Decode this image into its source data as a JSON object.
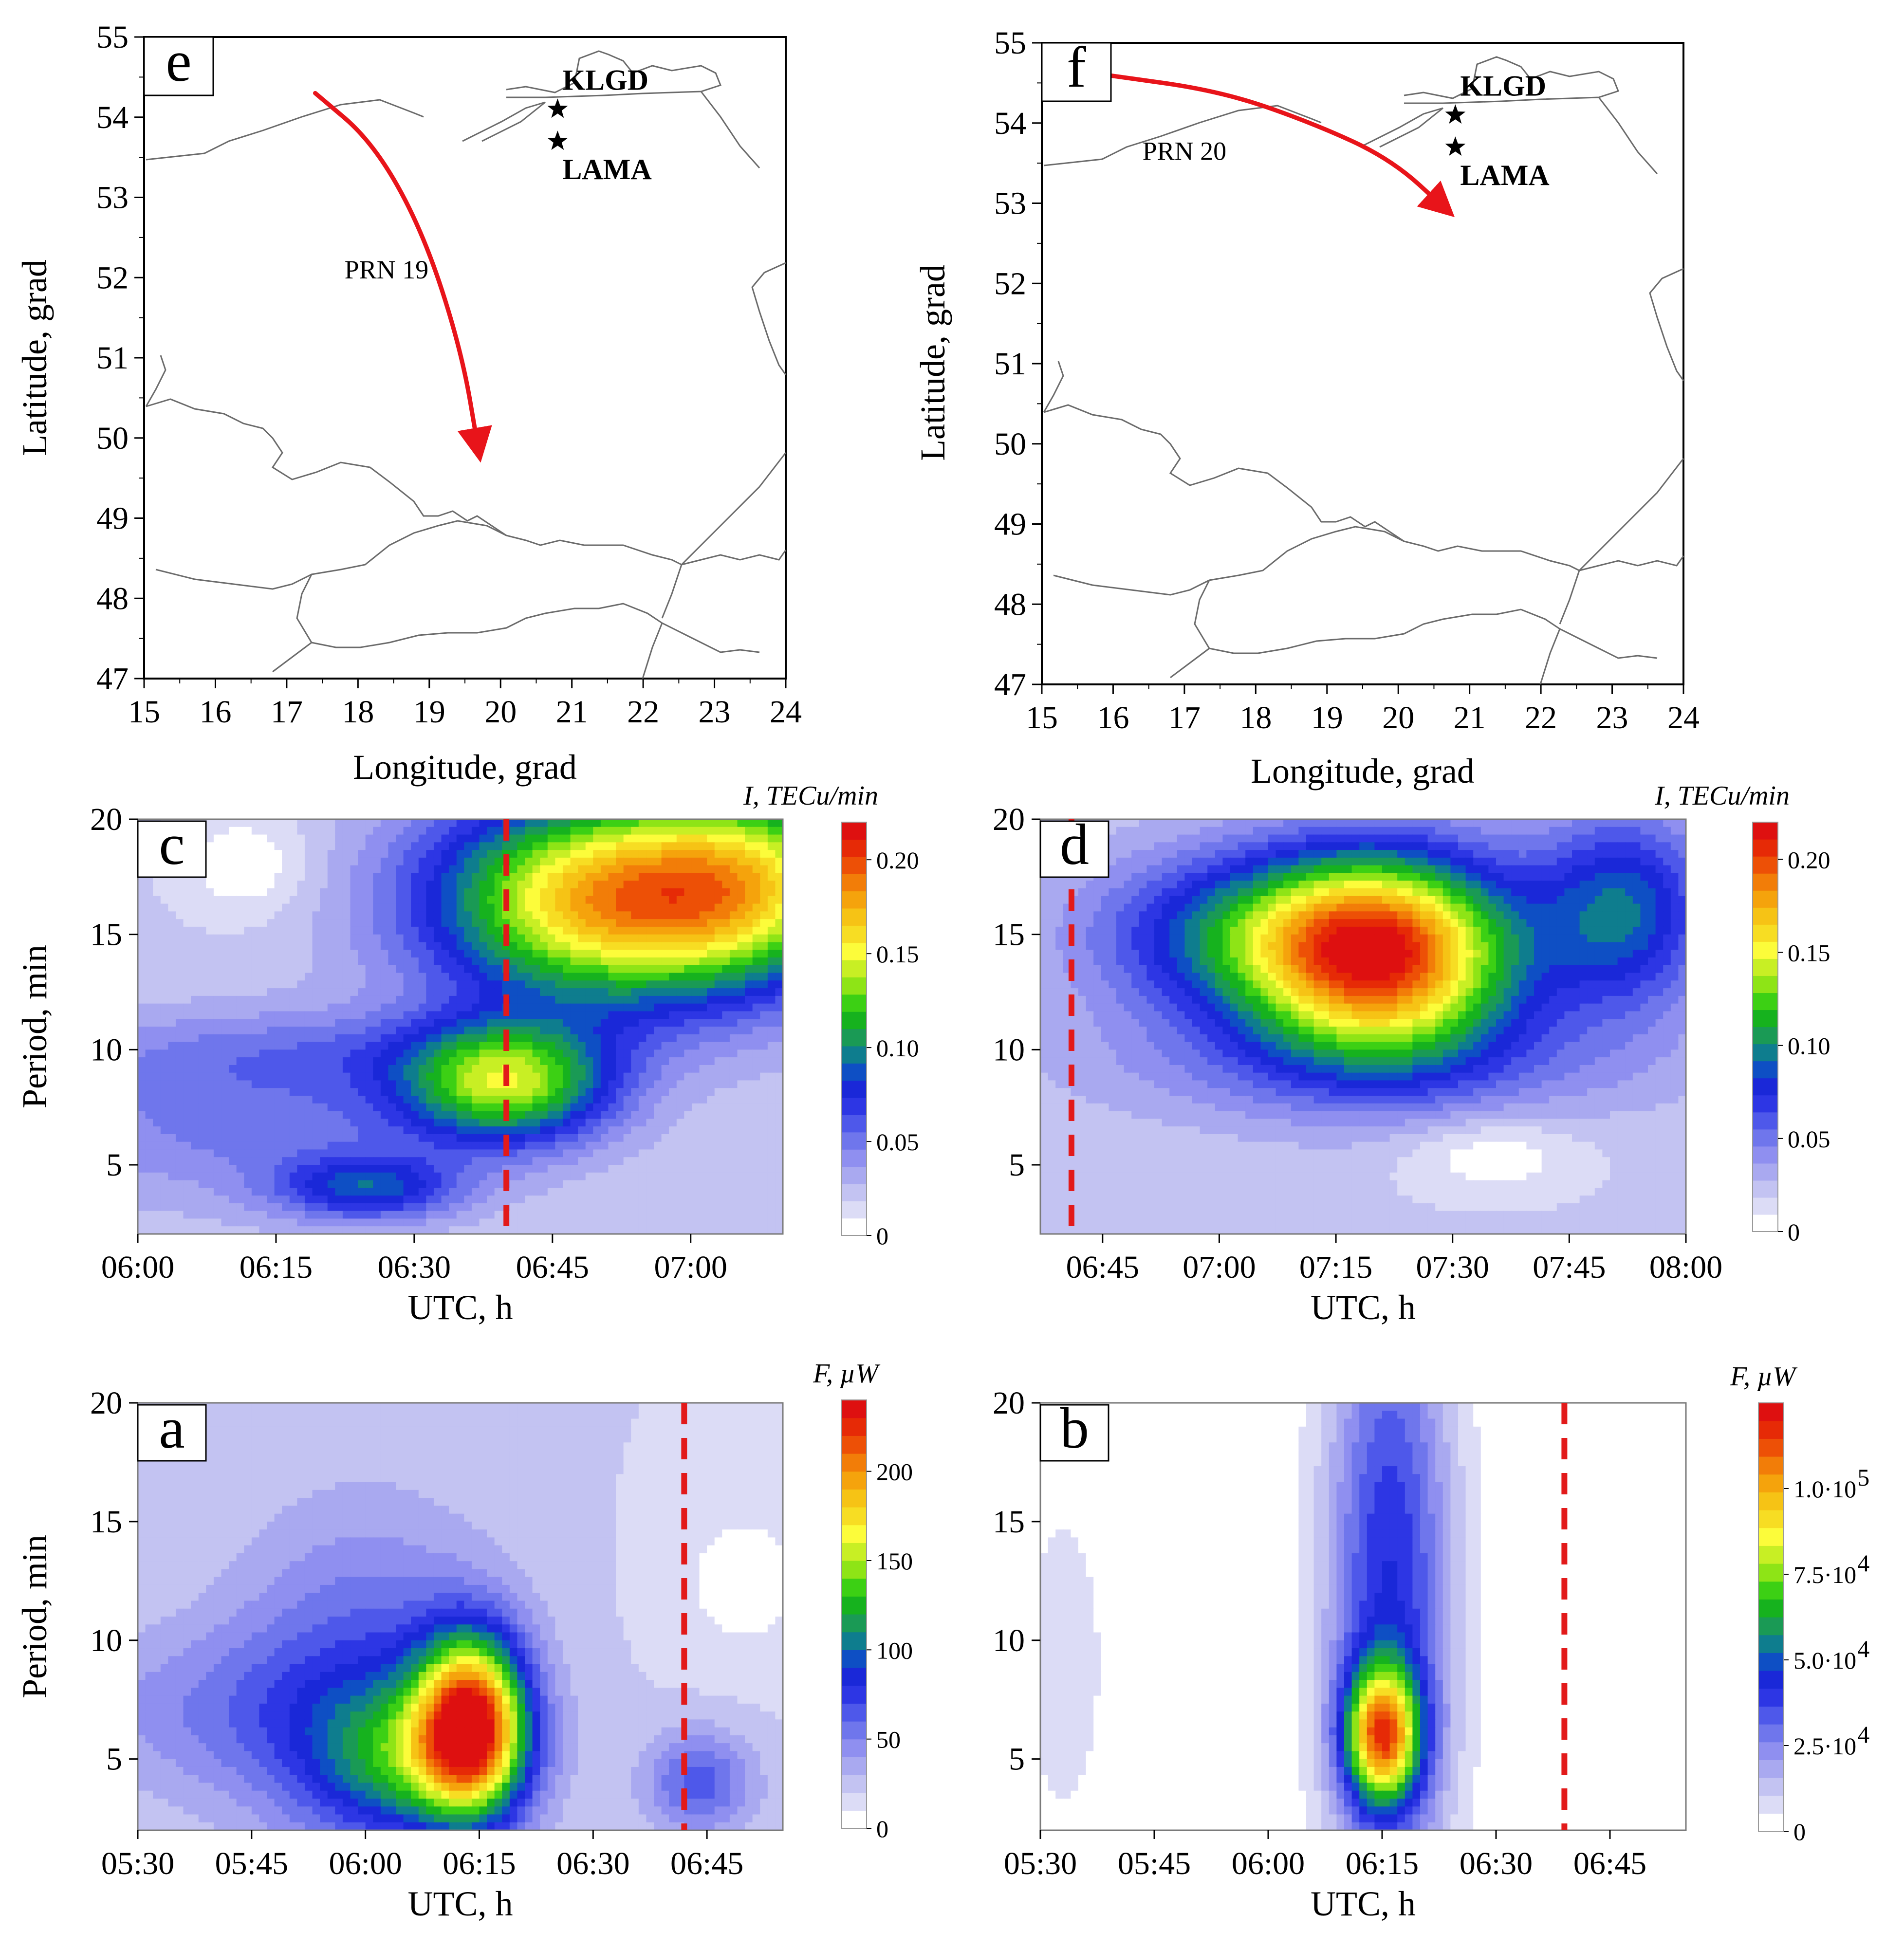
{
  "colors": {
    "scale": [
      "#ffffff",
      "#dcdcf6",
      "#c3c3f2",
      "#a9a9f0",
      "#8f8ff0",
      "#6f76ec",
      "#4e58ea",
      "#2d36e4",
      "#1a28d8",
      "#0e4fc4",
      "#0e7d8e",
      "#1a9a55",
      "#16b21e",
      "#3cd014",
      "#8ee416",
      "#c8ef24",
      "#fcfc3a",
      "#f7dd23",
      "#f6c315",
      "#f5a30c",
      "#f27d08",
      "#ed5006",
      "#e62a06",
      "#de1010"
    ],
    "arrow": "#e8141a",
    "dashed": "#e21a1a",
    "border": "#7a7a7a"
  },
  "chart_data": [
    {
      "id": "e",
      "type": "map",
      "panel_label": "e",
      "xlabel": "Longitude, grad",
      "ylabel": "Latitude, grad",
      "xlim": [
        15,
        24
      ],
      "ylim": [
        47,
        55
      ],
      "xticks": [
        "15",
        "16",
        "17",
        "18",
        "19",
        "20",
        "21",
        "22",
        "23",
        "24"
      ],
      "yticks": [
        "47",
        "48",
        "49",
        "50",
        "51",
        "52",
        "53",
        "54",
        "55"
      ],
      "stations": [
        {
          "name": "KLGD",
          "lon": 20.8,
          "lat": 54.1
        },
        {
          "name": "LAMA",
          "lon": 20.8,
          "lat": 53.7
        }
      ],
      "track_label": "PRN 19",
      "track": [
        [
          17.4,
          54.3
        ],
        [
          18.2,
          53.7
        ],
        [
          18.9,
          52.6
        ],
        [
          19.45,
          51.1
        ],
        [
          19.7,
          49.8
        ]
      ],
      "track_label_pos": [
        18.4,
        52.1
      ]
    },
    {
      "id": "f",
      "type": "map",
      "panel_label": "f",
      "xlabel": "Longitude, grad",
      "ylabel": "Latitude, grad",
      "xlim": [
        15,
        24
      ],
      "ylim": [
        47,
        55
      ],
      "xticks": [
        "15",
        "16",
        "17",
        "18",
        "19",
        "20",
        "21",
        "22",
        "23",
        "24"
      ],
      "yticks": [
        "47",
        "48",
        "49",
        "50",
        "51",
        "52",
        "53",
        "54",
        "55"
      ],
      "stations": [
        {
          "name": "KLGD",
          "lon": 20.8,
          "lat": 54.1
        },
        {
          "name": "LAMA",
          "lon": 20.8,
          "lat": 53.7
        }
      ],
      "track_label": "PRN 20",
      "track": [
        [
          15.9,
          54.6
        ],
        [
          17.5,
          54.4
        ],
        [
          18.8,
          54.0
        ],
        [
          19.9,
          53.55
        ],
        [
          20.7,
          52.9
        ]
      ],
      "track_label_pos": [
        17.0,
        53.65
      ]
    },
    {
      "id": "c",
      "type": "heatmap",
      "panel_label": "c",
      "xlabel": "UTC, h",
      "ylabel": "Period, min",
      "xlim": [
        0,
        70
      ],
      "ylim": [
        2,
        20
      ],
      "xtick_values": [
        0,
        15,
        30,
        45,
        60
      ],
      "xticks": [
        "06:00",
        "06:15",
        "06:30",
        "06:45",
        "07:00"
      ],
      "yticks": [
        "5",
        "10",
        "15",
        "20"
      ],
      "dashed_line_x": 40,
      "colorbar": {
        "title": "I, TECu/min",
        "vmax": 0.22,
        "ticks": [
          "0",
          "0.05",
          "0.10",
          "0.15",
          "0.20"
        ],
        "tick_values": [
          0,
          0.05,
          0.1,
          0.15,
          0.2
        ]
      },
      "background": 0.02,
      "blobs": [
        {
          "x": 52,
          "y": 16.5,
          "sx": 14,
          "sy": 3.2,
          "v": 0.16
        },
        {
          "x": 68,
          "y": 17.5,
          "sx": 9,
          "sy": 3,
          "v": 0.07
        },
        {
          "x": 40,
          "y": 8.5,
          "sx": 8,
          "sy": 1.8,
          "v": 0.11
        },
        {
          "x": 25,
          "y": 4.0,
          "sx": 7,
          "sy": 1.0,
          "v": 0.06
        },
        {
          "x": 20,
          "y": 10.0,
          "sx": 20,
          "sy": 1.3,
          "v": 0.02
        },
        {
          "x": 12,
          "y": 7.0,
          "sx": 18,
          "sy": 2.5,
          "v": 0.03
        }
      ],
      "dips": [
        {
          "x": 12,
          "y": 18.0,
          "sx": 5,
          "sy": 1.6,
          "v": 0.02
        }
      ]
    },
    {
      "id": "d",
      "type": "heatmap",
      "panel_label": "d",
      "xlabel": "UTC, h",
      "ylabel": "Period, min",
      "xlim": [
        37,
        120
      ],
      "ylim": [
        2,
        20
      ],
      "xtick_values": [
        45,
        60,
        75,
        90,
        105,
        120
      ],
      "xticks": [
        "06:45",
        "07:00",
        "07:15",
        "07:30",
        "07:45",
        "08:00"
      ],
      "yticks": [
        "5",
        "10",
        "15",
        "20"
      ],
      "dashed_line_x": 41,
      "colorbar": {
        "title": "I, TECu/min",
        "vmax": 0.22,
        "ticks": [
          "0",
          "0.05",
          "0.10",
          "0.15",
          "0.20"
        ],
        "tick_values": [
          0,
          0.05,
          0.1,
          0.15,
          0.2
        ]
      },
      "background": 0.02,
      "blobs": [
        {
          "x": 81,
          "y": 14.2,
          "sx": 12,
          "sy": 3.0,
          "v": 0.18
        },
        {
          "x": 62,
          "y": 15.0,
          "sx": 14,
          "sy": 2.5,
          "v": 0.06
        },
        {
          "x": 112,
          "y": 16.0,
          "sx": 8,
          "sy": 3.0,
          "v": 0.07
        },
        {
          "x": 80,
          "y": 9.5,
          "sx": 25,
          "sy": 2.0,
          "v": 0.03
        }
      ],
      "dips": [
        {
          "x": 95,
          "y": 5.5,
          "sx": 8,
          "sy": 1.2,
          "v": 0.02
        }
      ]
    },
    {
      "id": "a",
      "type": "heatmap",
      "panel_label": "a",
      "xlabel": "UTC, h",
      "ylabel": "Period, min",
      "xlim": [
        0,
        85
      ],
      "ylim": [
        2,
        20
      ],
      "xtick_values": [
        0,
        15,
        30,
        45,
        60,
        75
      ],
      "xticks": [
        "05:30",
        "05:45",
        "06:00",
        "06:15",
        "06:30",
        "06:45"
      ],
      "yticks": [
        "5",
        "10",
        "15",
        "20"
      ],
      "dashed_line_x": 72,
      "colorbar": {
        "title": "F, µW",
        "vmax": 240,
        "ticks": [
          "0",
          "50",
          "100",
          "150",
          "200"
        ],
        "tick_values": [
          0,
          50,
          100,
          150,
          200
        ]
      },
      "background": 20,
      "blobs": [
        {
          "x": 44,
          "y": 6.5,
          "sx": 5,
          "sy": 2.6,
          "v": 190
        },
        {
          "x": 36,
          "y": 5.0,
          "sx": 9,
          "sy": 2.2,
          "v": 70
        },
        {
          "x": 30,
          "y": 8.0,
          "sx": 12,
          "sy": 5.0,
          "v": 45
        },
        {
          "x": 74,
          "y": 4.0,
          "sx": 5,
          "sy": 1.5,
          "v": 45
        },
        {
          "x": 10,
          "y": 7.0,
          "sx": 14,
          "sy": 2.5,
          "v": 25
        }
      ],
      "dips": [
        {
          "x": 80,
          "y": 12.5,
          "sx": 7,
          "sy": 2.5,
          "v": 15
        }
      ]
    },
    {
      "id": "b",
      "type": "heatmap",
      "panel_label": "b",
      "xlabel": "UTC, h",
      "ylabel": "Period, min",
      "xlim": [
        0,
        85
      ],
      "ylim": [
        2,
        20
      ],
      "xtick_values": [
        0,
        15,
        30,
        45,
        60,
        75
      ],
      "xticks": [
        "05:30",
        "05:45",
        "06:00",
        "06:15",
        "06:30",
        "06:45"
      ],
      "yticks": [
        "5",
        "10",
        "15",
        "20"
      ],
      "dashed_line_x": 69,
      "colorbar": {
        "title": "F, µW",
        "vmax": 125000,
        "ticks": [
          "0",
          "2.5·10",
          "5.0·10",
          "7.5·10",
          "1.0·10"
        ],
        "tick_exp": [
          "",
          "4",
          "4",
          "4",
          "5"
        ],
        "tick_values": [
          0,
          25000,
          50000,
          75000,
          100000
        ]
      },
      "background": 0,
      "blobs": [
        {
          "x": 46,
          "y": 12.0,
          "sx": 6,
          "sy": 10,
          "v": 42000
        },
        {
          "x": 45,
          "y": 6.0,
          "sx": 3.5,
          "sy": 2.0,
          "v": 85000
        },
        {
          "x": 3,
          "y": 9.0,
          "sx": 5,
          "sy": 6.0,
          "v": 8000
        }
      ],
      "dips": []
    }
  ]
}
